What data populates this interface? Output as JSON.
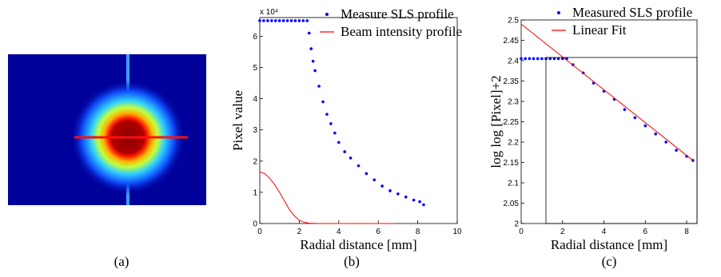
{
  "image_panel": {
    "caption": "(a)"
  },
  "chart_data": [
    {
      "type": "scatter",
      "caption": "(b)",
      "xlabel": "Radial distance [mm]",
      "ylabel": "Pixel value",
      "y_multiplier": "x 10⁴",
      "xlim": [
        0,
        10
      ],
      "xticks": [
        0,
        2,
        4,
        6,
        8,
        10
      ],
      "ylim": [
        0,
        6.6
      ],
      "yticks": [
        0,
        1,
        2,
        3,
        4,
        5,
        6
      ],
      "series": [
        {
          "name": "Measure SLS profile",
          "color": "#0000ff",
          "style": "markers",
          "x": [
            0,
            0.2,
            0.4,
            0.6,
            0.8,
            1.0,
            1.2,
            1.4,
            1.6,
            1.8,
            2.0,
            2.2,
            2.4,
            2.5,
            2.6,
            2.7,
            2.8,
            3.0,
            3.2,
            3.4,
            3.6,
            3.8,
            4.0,
            4.3,
            4.6,
            5.0,
            5.4,
            5.8,
            6.2,
            6.6,
            7.0,
            7.4,
            7.8,
            8.1,
            8.3
          ],
          "values": [
            6.5,
            6.5,
            6.5,
            6.5,
            6.5,
            6.5,
            6.5,
            6.5,
            6.5,
            6.5,
            6.5,
            6.5,
            6.5,
            6.1,
            5.6,
            5.2,
            4.9,
            4.4,
            3.9,
            3.5,
            3.2,
            2.9,
            2.6,
            2.3,
            2.1,
            1.85,
            1.6,
            1.4,
            1.2,
            1.05,
            0.95,
            0.85,
            0.75,
            0.7,
            0.6
          ]
        },
        {
          "name": "Beam intensity profile",
          "color": "#ff0000",
          "style": "line",
          "x": [
            0,
            0.25,
            0.5,
            0.75,
            1,
            1.25,
            1.5,
            1.75,
            2,
            2.25,
            2.5,
            3,
            4,
            5,
            6,
            6.8
          ],
          "values": [
            1.65,
            1.6,
            1.45,
            1.25,
            1.0,
            0.72,
            0.45,
            0.25,
            0.1,
            0.04,
            0.01,
            0,
            0,
            0,
            0,
            0
          ]
        }
      ]
    },
    {
      "type": "scatter",
      "caption": "(c)",
      "xlabel": "Radial distance [mm]",
      "ylabel": "log log [Pixel]+2",
      "xlim": [
        0,
        8.5
      ],
      "xticks": [
        0,
        2,
        4,
        6,
        8
      ],
      "ylim": [
        2,
        2.5
      ],
      "yticks": [
        2,
        2.05,
        2.1,
        2.15,
        2.2,
        2.25,
        2.3,
        2.35,
        2.4,
        2.45,
        2.5
      ],
      "series": [
        {
          "name": "Measured SLS profile",
          "color": "#0000ff",
          "style": "markers",
          "x": [
            0,
            0.2,
            0.4,
            0.6,
            0.8,
            1.0,
            1.2,
            1.4,
            1.6,
            1.8,
            2.0,
            2.2,
            2.5,
            3,
            3.5,
            4,
            4.5,
            5,
            5.5,
            6,
            6.5,
            7,
            7.5,
            8,
            8.3
          ],
          "values": [
            2.405,
            2.405,
            2.405,
            2.405,
            2.405,
            2.405,
            2.405,
            2.405,
            2.405,
            2.405,
            2.405,
            2.405,
            2.39,
            2.37,
            2.345,
            2.325,
            2.305,
            2.28,
            2.26,
            2.24,
            2.22,
            2.2,
            2.18,
            2.165,
            2.155
          ]
        },
        {
          "name": "Linear Fit",
          "color": "#ff0000",
          "style": "line",
          "x": [
            0,
            8.3
          ],
          "values": [
            2.49,
            2.155
          ]
        }
      ]
    }
  ]
}
